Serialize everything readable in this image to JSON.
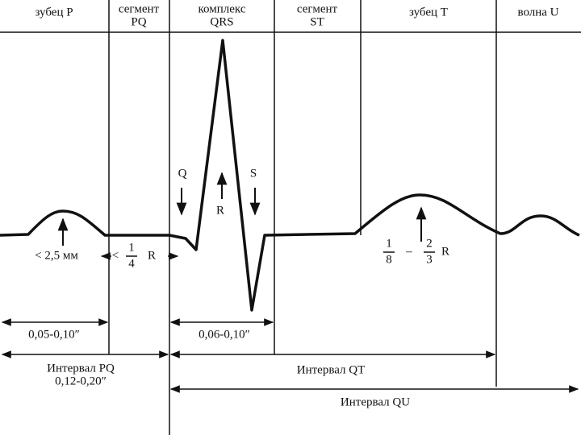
{
  "headers": [
    [
      "зубец P"
    ],
    [
      "сегмент",
      "PQ"
    ],
    [
      "комплекс",
      "QRS"
    ],
    [
      "сегмент",
      "ST"
    ],
    [
      "зубец T"
    ],
    [
      "волна U"
    ]
  ],
  "labels": {
    "q": "Q",
    "s": "S",
    "r": "R",
    "p_amplitude": "< 2,5 мм",
    "pq_ratio": {
      "prefix": "<",
      "num": "1",
      "den": "4",
      "suffix": "R"
    },
    "t_ratio": {
      "num1": "1",
      "den1": "8",
      "dash": "–",
      "num2": "2",
      "den2": "3",
      "suffix": "R"
    }
  },
  "durations": {
    "p": "0,05-0,10″",
    "qrs": "0,06-0,10″"
  },
  "intervals": {
    "pq": {
      "title": "Интервал PQ",
      "value": "0,12-0,20″"
    },
    "qt": {
      "title": "Интервал QT"
    },
    "qu": {
      "title": "Интервал QU"
    }
  }
}
